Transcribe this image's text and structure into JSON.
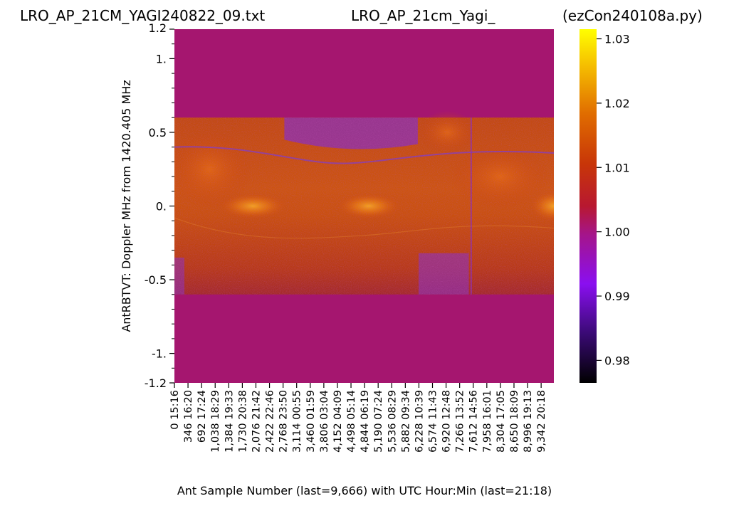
{
  "titles": {
    "left": "LRO_AP_21CM_YAGI240822_09.txt",
    "center": "LRO_AP_21cm_Yagi_",
    "right": "(ezCon240108a.py)"
  },
  "chart_data": {
    "type": "heatmap",
    "ylabel": "AntRBTVT:  Doppler MHz from 1420.405 MHz",
    "xlabel": "Ant Sample Number (last=9,666) with UTC Hour:Min (last=21:18)",
    "x_range": [
      0,
      9666
    ],
    "ylim": [
      -1.2,
      1.2
    ],
    "y_ticks": [
      {
        "value": 1.2,
        "label": "1.2"
      },
      {
        "value": 1.0,
        "label": "1."
      },
      {
        "value": 0.5,
        "label": "0.5"
      },
      {
        "value": 0.0,
        "label": "0."
      },
      {
        "value": -0.5,
        "label": "-0.5"
      },
      {
        "value": -1.0,
        "label": "-1."
      },
      {
        "value": -1.2,
        "label": "-1.2"
      }
    ],
    "x_ticks": [
      {
        "value": 0,
        "label": "0"
      },
      {
        "value": 346,
        "label": "346"
      },
      {
        "value": 692,
        "label": "692"
      },
      {
        "value": 1038,
        "label": "1,038"
      },
      {
        "value": 1384,
        "label": "1,384"
      },
      {
        "value": 1730,
        "label": "1,730"
      },
      {
        "value": 2076,
        "label": "2,076"
      },
      {
        "value": 2422,
        "label": "2,422"
      },
      {
        "value": 2768,
        "label": "2,768"
      },
      {
        "value": 3114,
        "label": "3,114"
      },
      {
        "value": 3460,
        "label": "3,460"
      },
      {
        "value": 3806,
        "label": "3,806"
      },
      {
        "value": 4152,
        "label": "4,152"
      },
      {
        "value": 4498,
        "label": "4,498"
      },
      {
        "value": 4844,
        "label": "4,844"
      },
      {
        "value": 5190,
        "label": "5,190"
      },
      {
        "value": 5536,
        "label": "5,536"
      },
      {
        "value": 5882,
        "label": "5,882"
      },
      {
        "value": 6228,
        "label": "6,228"
      },
      {
        "value": 6574,
        "label": "6,574"
      },
      {
        "value": 6920,
        "label": "6,920"
      },
      {
        "value": 7266,
        "label": "7,266"
      },
      {
        "value": 7612,
        "label": "7,612"
      },
      {
        "value": 7958,
        "label": "7,958"
      },
      {
        "value": 8304,
        "label": "8,304"
      },
      {
        "value": 8650,
        "label": "8,650"
      },
      {
        "value": 8996,
        "label": "8,996"
      },
      {
        "value": 9342,
        "label": "9,342"
      }
    ],
    "utc_labels": [
      "15:16",
      "16:20",
      "17:24",
      "18:29",
      "19:33",
      "20:38",
      "21:42",
      "22:46",
      "23:50",
      "00:55",
      "01:59",
      "03:04",
      "04:09",
      "05:14",
      "06:19",
      "07:24",
      "08:29",
      "09:34",
      "10:39",
      "11:43",
      "12:48",
      "13:52",
      "14:56",
      "16:01",
      "17:05",
      "18:09",
      "19:13",
      "20:18"
    ],
    "data_band_y": [
      -0.6,
      0.6
    ],
    "fill_value": 1.0,
    "bright_regions": [
      {
        "x_center": 2000,
        "y_center": 0.0,
        "level": 1.018
      },
      {
        "x_center": 4950,
        "y_center": 0.0,
        "level": 1.02
      },
      {
        "x_center": 9666,
        "y_center": 0.0,
        "level": 1.016
      },
      {
        "x_center": 6950,
        "y_center": 0.5,
        "level": 1.013
      }
    ],
    "colorbar": {
      "colormap": "gnuplot",
      "range": [
        0.9765,
        1.0315
      ],
      "ticks": [
        {
          "value": 1.03,
          "label": "1.03"
        },
        {
          "value": 1.02,
          "label": "1.02"
        },
        {
          "value": 1.01,
          "label": "1.01"
        },
        {
          "value": 1.0,
          "label": "1.00"
        },
        {
          "value": 0.99,
          "label": "0.99"
        },
        {
          "value": 0.98,
          "label": "0.98"
        }
      ]
    }
  }
}
